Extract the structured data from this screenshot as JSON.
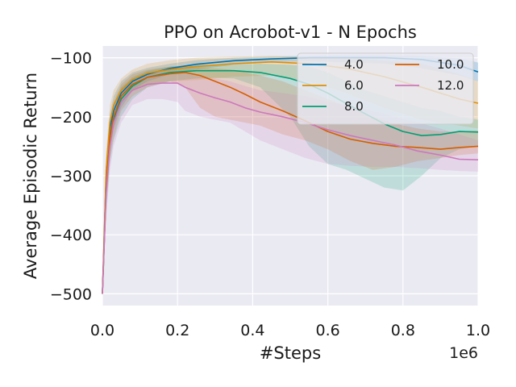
{
  "chart_data": {
    "type": "line",
    "title": "PPO on Acrobot-v1 - N Epochs",
    "xlabel": "#Steps",
    "ylabel": "Average Episodic Return",
    "x_offset_label": "1e6",
    "xlim": [
      0,
      1.0
    ],
    "ylim": [
      -520,
      -80
    ],
    "xticks": [
      0.0,
      0.2,
      0.4,
      0.6,
      0.8,
      1.0
    ],
    "xtick_labels": [
      "0.0",
      "0.2",
      "0.4",
      "0.6",
      "0.8",
      "1.0"
    ],
    "yticks": [
      -100,
      -200,
      -300,
      -400,
      -500
    ],
    "ytick_labels": [
      "−100",
      "−200",
      "−300",
      "−400",
      "−500"
    ],
    "grid": true,
    "legend_position": "top-right",
    "series": [
      {
        "name": "4.0",
        "color": "#0173b2",
        "x": [
          0,
          0.01,
          0.02,
          0.03,
          0.05,
          0.08,
          0.12,
          0.18,
          0.25,
          0.35,
          0.45,
          0.55,
          0.65,
          0.75,
          0.85,
          0.95,
          1.0
        ],
        "y": [
          -500,
          -300,
          -220,
          -190,
          -160,
          -140,
          -128,
          -118,
          -111,
          -105,
          -102,
          -100,
          -100,
          -100,
          -103,
          -113,
          -124
        ],
        "lower": [
          -500,
          -340,
          -260,
          -220,
          -185,
          -155,
          -140,
          -128,
          -120,
          -112,
          -108,
          -106,
          -108,
          -110,
          -118,
          -130,
          -140
        ],
        "upper": [
          -500,
          -270,
          -195,
          -165,
          -140,
          -125,
          -117,
          -110,
          -104,
          -100,
          -98,
          -97,
          -96,
          -96,
          -97,
          -101,
          -108
        ]
      },
      {
        "name": "6.0",
        "color": "#de8f05",
        "x": [
          0,
          0.01,
          0.02,
          0.03,
          0.05,
          0.08,
          0.12,
          0.18,
          0.25,
          0.35,
          0.45,
          0.55,
          0.65,
          0.75,
          0.85,
          0.95,
          1.0
        ],
        "y": [
          -500,
          -290,
          -210,
          -180,
          -155,
          -137,
          -126,
          -120,
          -115,
          -110,
          -107,
          -110,
          -118,
          -132,
          -150,
          -170,
          -177
        ],
        "lower": [
          -500,
          -320,
          -240,
          -205,
          -175,
          -155,
          -145,
          -140,
          -138,
          -132,
          -130,
          -140,
          -160,
          -185,
          -205,
          -215,
          -220
        ],
        "upper": [
          -500,
          -260,
          -180,
          -155,
          -135,
          -120,
          -110,
          -104,
          -100,
          -98,
          -97,
          -98,
          -100,
          -105,
          -110,
          -128,
          -140
        ]
      },
      {
        "name": "8.0",
        "color": "#029e73",
        "x": [
          0,
          0.01,
          0.02,
          0.03,
          0.05,
          0.08,
          0.12,
          0.18,
          0.25,
          0.3,
          0.35,
          0.42,
          0.5,
          0.55,
          0.6,
          0.65,
          0.7,
          0.75,
          0.8,
          0.85,
          0.9,
          0.95,
          1.0
        ],
        "y": [
          -500,
          -320,
          -240,
          -205,
          -170,
          -148,
          -133,
          -125,
          -122,
          -122,
          -122,
          -125,
          -135,
          -145,
          -160,
          -178,
          -195,
          -212,
          -225,
          -232,
          -230,
          -225,
          -226
        ],
        "lower": [
          -500,
          -360,
          -280,
          -240,
          -200,
          -170,
          -150,
          -140,
          -135,
          -134,
          -135,
          -150,
          -200,
          -250,
          -280,
          -290,
          -305,
          -320,
          -325,
          -300,
          -270,
          -255,
          -250
        ],
        "upper": [
          -500,
          -290,
          -210,
          -180,
          -150,
          -133,
          -122,
          -115,
          -112,
          -112,
          -112,
          -110,
          -112,
          -115,
          -125,
          -140,
          -155,
          -165,
          -175,
          -185,
          -190,
          -200,
          -205
        ]
      },
      {
        "name": "10.0",
        "color": "#d55e00",
        "x": [
          0,
          0.01,
          0.02,
          0.03,
          0.05,
          0.08,
          0.12,
          0.18,
          0.22,
          0.26,
          0.3,
          0.34,
          0.38,
          0.42,
          0.48,
          0.54,
          0.6,
          0.66,
          0.72,
          0.78,
          0.84,
          0.9,
          0.95,
          1.0
        ],
        "y": [
          -500,
          -320,
          -235,
          -200,
          -165,
          -145,
          -133,
          -127,
          -125,
          -130,
          -140,
          -150,
          -162,
          -175,
          -190,
          -207,
          -225,
          -238,
          -245,
          -250,
          -252,
          -255,
          -252,
          -250
        ],
        "lower": [
          -500,
          -350,
          -270,
          -235,
          -190,
          -165,
          -150,
          -140,
          -150,
          -185,
          -200,
          -205,
          -210,
          -215,
          -230,
          -240,
          -255,
          -275,
          -290,
          -285,
          -275,
          -270,
          -265,
          -262
        ],
        "upper": [
          -500,
          -290,
          -205,
          -175,
          -145,
          -128,
          -120,
          -115,
          -113,
          -116,
          -118,
          -120,
          -125,
          -130,
          -140,
          -155,
          -170,
          -185,
          -200,
          -212,
          -220,
          -225,
          -225,
          -223
        ]
      },
      {
        "name": "12.0",
        "color": "#cc78bc",
        "x": [
          0,
          0.01,
          0.02,
          0.03,
          0.05,
          0.08,
          0.12,
          0.16,
          0.2,
          0.22,
          0.26,
          0.3,
          0.34,
          0.38,
          0.42,
          0.48,
          0.54,
          0.6,
          0.66,
          0.72,
          0.78,
          0.84,
          0.9,
          0.95,
          1.0
        ],
        "y": [
          -500,
          -330,
          -250,
          -210,
          -175,
          -155,
          -145,
          -143,
          -143,
          -150,
          -160,
          -168,
          -175,
          -185,
          -192,
          -200,
          -210,
          -222,
          -232,
          -240,
          -248,
          -258,
          -265,
          -272,
          -273
        ],
        "lower": [
          -500,
          -370,
          -290,
          -250,
          -210,
          -180,
          -170,
          -170,
          -175,
          -190,
          -200,
          -205,
          -210,
          -225,
          -240,
          -255,
          -270,
          -280,
          -283,
          -285,
          -285,
          -287,
          -290,
          -292,
          -293
        ],
        "upper": [
          -500,
          -300,
          -220,
          -185,
          -152,
          -135,
          -127,
          -124,
          -122,
          -125,
          -130,
          -135,
          -140,
          -148,
          -155,
          -160,
          -165,
          -175,
          -180,
          -190,
          -200,
          -210,
          -220,
          -230,
          -240
        ]
      }
    ]
  }
}
